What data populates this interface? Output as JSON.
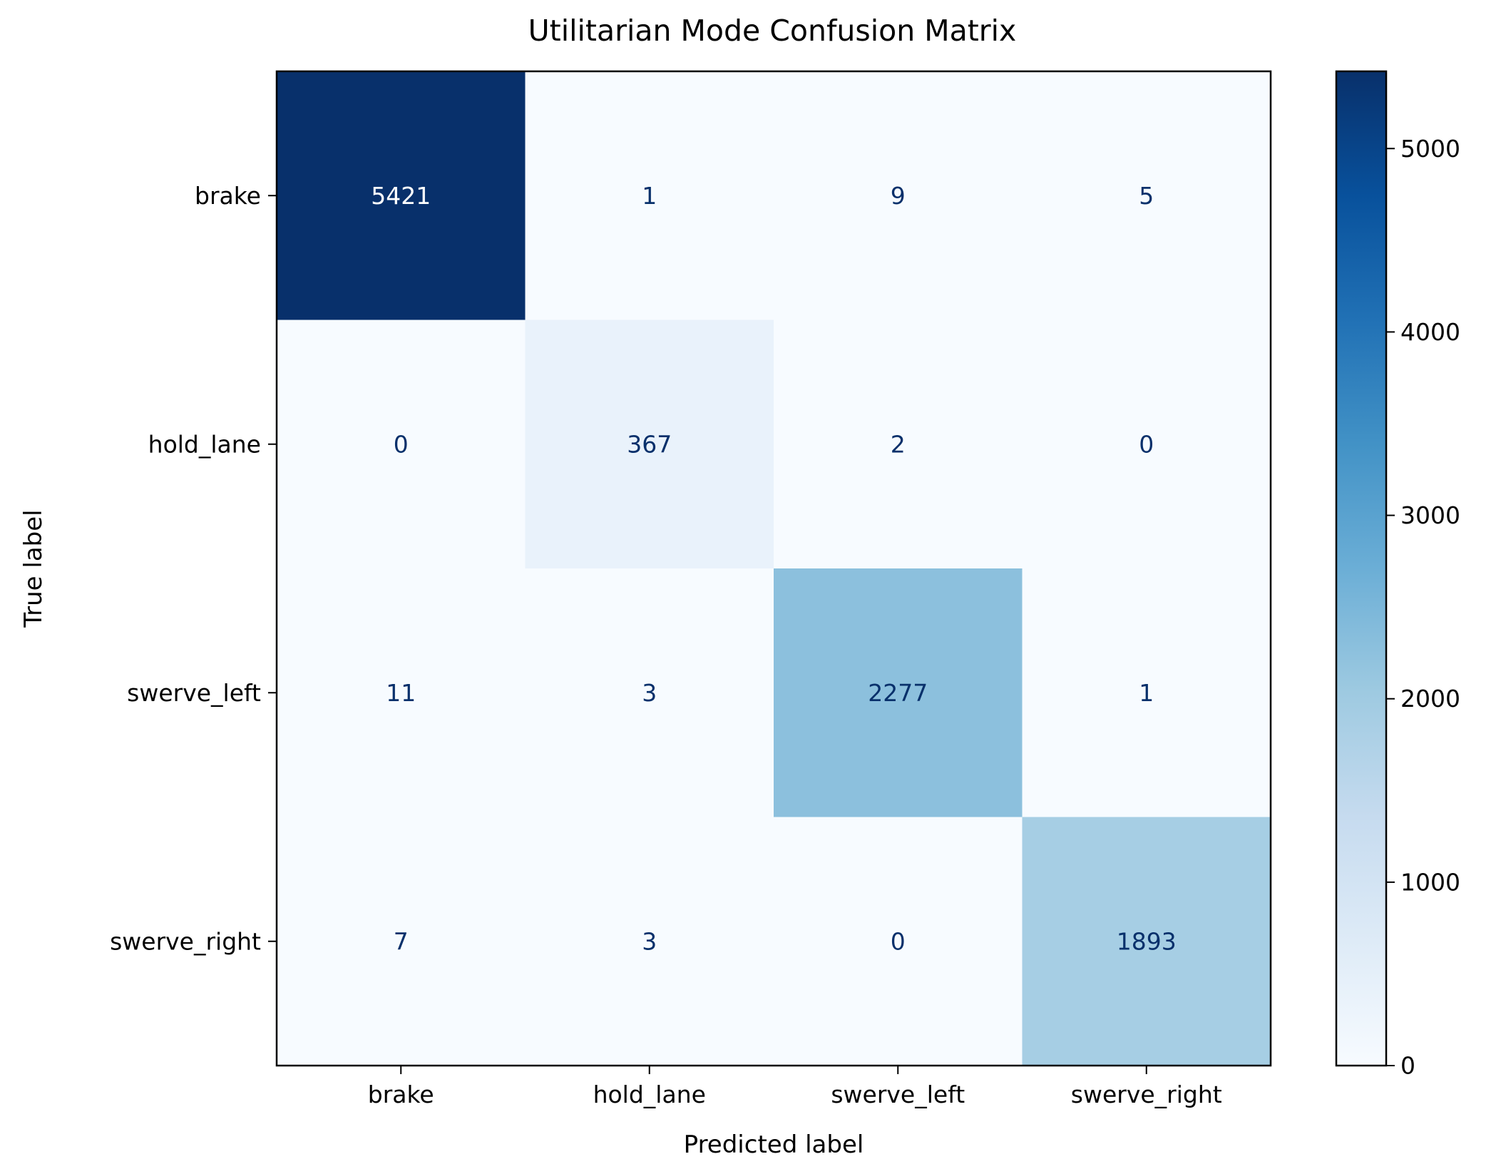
{
  "chart_data": {
    "type": "heatmap",
    "title": "Utilitarian Mode Confusion Matrix",
    "xlabel": "Predicted label",
    "ylabel": "True label",
    "x_categories": [
      "brake",
      "hold_lane",
      "swerve_left",
      "swerve_right"
    ],
    "y_categories": [
      "brake",
      "hold_lane",
      "swerve_left",
      "swerve_right"
    ],
    "matrix": [
      [
        5421,
        1,
        9,
        5
      ],
      [
        0,
        367,
        2,
        0
      ],
      [
        11,
        3,
        2277,
        1
      ],
      [
        7,
        3,
        0,
        1893
      ]
    ],
    "colormap": "Blues",
    "value_range": [
      0,
      5421
    ],
    "colorbar": {
      "ticks": [
        0,
        1000,
        2000,
        3000,
        4000,
        5000
      ],
      "tick_labels": [
        "0",
        "1000",
        "2000",
        "3000",
        "4000",
        "5000"
      ]
    },
    "text_color_dark": "#08306b",
    "text_color_light": "#ffffff"
  }
}
